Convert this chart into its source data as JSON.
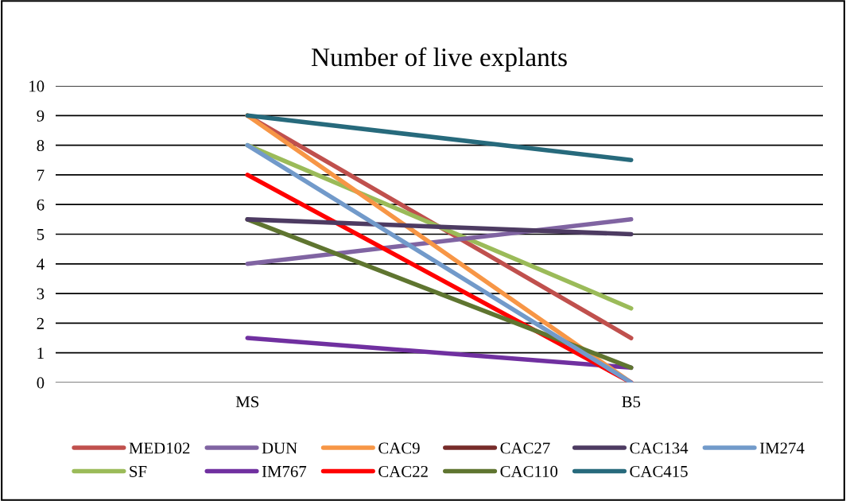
{
  "chart_data": {
    "type": "line",
    "title": "Number of live explants",
    "categories": [
      "MS",
      "B5"
    ],
    "ylim": [
      0,
      10
    ],
    "yticks": [
      0,
      1,
      2,
      3,
      4,
      5,
      6,
      7,
      8,
      9,
      10
    ],
    "grid": "y",
    "legend": "bottom",
    "marker": "none",
    "line_style": "solid",
    "series": [
      {
        "name": "MED102",
        "color": "#c0504d",
        "values": [
          9,
          1.5
        ]
      },
      {
        "name": "SF",
        "color": "#9bbb59",
        "values": [
          8,
          2.5
        ]
      },
      {
        "name": "DUN",
        "color": "#8064a2",
        "values": [
          4,
          5.5
        ]
      },
      {
        "name": "IM767",
        "color": "#7030a0",
        "values": [
          1.5,
          0.5
        ]
      },
      {
        "name": "CAC9",
        "color": "#f79646",
        "values": [
          9,
          0
        ]
      },
      {
        "name": "CAC22",
        "color": "#ff0000",
        "values": [
          7,
          0
        ]
      },
      {
        "name": "CAC27",
        "color": "#772c2a",
        "values": [
          null,
          null
        ]
      },
      {
        "name": "CAC110",
        "color": "#5f7530",
        "values": [
          5.5,
          0.5
        ]
      },
      {
        "name": "CAC134",
        "color": "#4d3b62",
        "values": [
          5.5,
          5
        ]
      },
      {
        "name": "CAC415",
        "color": "#276a7c",
        "values": [
          9,
          7.5
        ]
      },
      {
        "name": "IM274",
        "color": "#729aca",
        "values": [
          8,
          0
        ]
      }
    ]
  }
}
